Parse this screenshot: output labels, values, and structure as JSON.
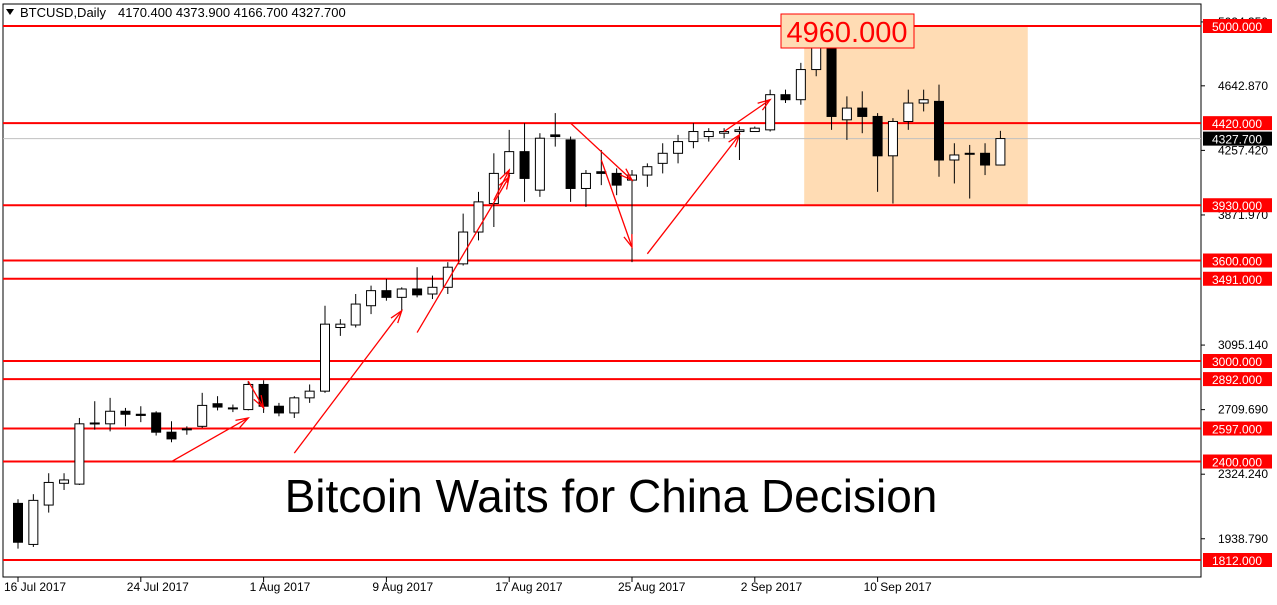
{
  "header": {
    "symbol": "BTCUSD,Daily",
    "ohlc": "4170.400 4373.900 4166.700 4327.700",
    "menu_icon": "triangle-down-icon"
  },
  "headline": "Bitcoin Waits for China Decision",
  "colors": {
    "level_line": "#ff0000",
    "zone_fill": "#ffdcb4",
    "candle_up": "#ffffff",
    "candle_down": "#000000",
    "annotation": "#ff0000",
    "current_price_bg": "#000000"
  },
  "chart_data": {
    "type": "candlestick",
    "title": "BTCUSD,Daily",
    "ylim": [
      1812,
      5000
    ],
    "y_ticks": [
      "1938.790",
      "2324.240",
      "2709.690",
      "3095.140",
      "3871.970",
      "4257.420",
      "4642.870",
      "5024.350"
    ],
    "x_ticks": [
      {
        "date": "2017-07-16",
        "label": "16 Jul 2017"
      },
      {
        "date": "2017-07-24",
        "label": "24 Jul 2017"
      },
      {
        "date": "2017-08-01",
        "label": "1 Aug 2017"
      },
      {
        "date": "2017-08-09",
        "label": "9 Aug 2017"
      },
      {
        "date": "2017-08-17",
        "label": "17 Aug 2017"
      },
      {
        "date": "2017-08-25",
        "label": "25 Aug 2017"
      },
      {
        "date": "2017-09-02",
        "label": "2 Sep 2017"
      },
      {
        "date": "2017-09-10",
        "label": "10 Sep 2017"
      }
    ],
    "candles": [
      {
        "date": "2017-07-16",
        "o": 2150,
        "h": 2175,
        "l": 1880,
        "c": 1918
      },
      {
        "date": "2017-07-17",
        "o": 1905,
        "h": 2205,
        "l": 1890,
        "c": 2168
      },
      {
        "date": "2017-07-18",
        "o": 2140,
        "h": 2330,
        "l": 2095,
        "c": 2275
      },
      {
        "date": "2017-07-19",
        "o": 2270,
        "h": 2330,
        "l": 2230,
        "c": 2290
      },
      {
        "date": "2017-07-20",
        "o": 2265,
        "h": 2660,
        "l": 2260,
        "c": 2625
      },
      {
        "date": "2017-07-21",
        "o": 2625,
        "h": 2760,
        "l": 2590,
        "c": 2630
      },
      {
        "date": "2017-07-22",
        "o": 2625,
        "h": 2780,
        "l": 2580,
        "c": 2700
      },
      {
        "date": "2017-07-23",
        "o": 2700,
        "h": 2720,
        "l": 2610,
        "c": 2682
      },
      {
        "date": "2017-07-24",
        "o": 2682,
        "h": 2730,
        "l": 2635,
        "c": 2675
      },
      {
        "date": "2017-07-25",
        "o": 2690,
        "h": 2700,
        "l": 2555,
        "c": 2575
      },
      {
        "date": "2017-07-26",
        "o": 2575,
        "h": 2640,
        "l": 2515,
        "c": 2535
      },
      {
        "date": "2017-07-27",
        "o": 2595,
        "h": 2610,
        "l": 2560,
        "c": 2590
      },
      {
        "date": "2017-07-28",
        "o": 2610,
        "h": 2810,
        "l": 2600,
        "c": 2735
      },
      {
        "date": "2017-07-29",
        "o": 2745,
        "h": 2790,
        "l": 2705,
        "c": 2725
      },
      {
        "date": "2017-07-30",
        "o": 2720,
        "h": 2740,
        "l": 2695,
        "c": 2715
      },
      {
        "date": "2017-07-31",
        "o": 2710,
        "h": 2880,
        "l": 2705,
        "c": 2860
      },
      {
        "date": "2017-08-01",
        "o": 2860,
        "h": 2885,
        "l": 2690,
        "c": 2730
      },
      {
        "date": "2017-08-02",
        "o": 2730,
        "h": 2750,
        "l": 2670,
        "c": 2690
      },
      {
        "date": "2017-08-03",
        "o": 2690,
        "h": 2790,
        "l": 2660,
        "c": 2780
      },
      {
        "date": "2017-08-04",
        "o": 2780,
        "h": 2860,
        "l": 2750,
        "c": 2820
      },
      {
        "date": "2017-08-05",
        "o": 2820,
        "h": 3330,
        "l": 2810,
        "c": 3220
      },
      {
        "date": "2017-08-06",
        "o": 3200,
        "h": 3250,
        "l": 3150,
        "c": 3220
      },
      {
        "date": "2017-08-07",
        "o": 3215,
        "h": 3400,
        "l": 3200,
        "c": 3340
      },
      {
        "date": "2017-08-08",
        "o": 3330,
        "h": 3450,
        "l": 3280,
        "c": 3420
      },
      {
        "date": "2017-08-09",
        "o": 3420,
        "h": 3490,
        "l": 3360,
        "c": 3380
      },
      {
        "date": "2017-08-10",
        "o": 3380,
        "h": 3440,
        "l": 3300,
        "c": 3430
      },
      {
        "date": "2017-08-11",
        "o": 3430,
        "h": 3560,
        "l": 3380,
        "c": 3395
      },
      {
        "date": "2017-08-12",
        "o": 3400,
        "h": 3510,
        "l": 3370,
        "c": 3440
      },
      {
        "date": "2017-08-13",
        "o": 3440,
        "h": 3590,
        "l": 3400,
        "c": 3560
      },
      {
        "date": "2017-08-14",
        "o": 3580,
        "h": 3880,
        "l": 3570,
        "c": 3770
      },
      {
        "date": "2017-08-15",
        "o": 3770,
        "h": 4010,
        "l": 3720,
        "c": 3950
      },
      {
        "date": "2017-08-16",
        "o": 3940,
        "h": 4240,
        "l": 3800,
        "c": 4120
      },
      {
        "date": "2017-08-17",
        "o": 4120,
        "h": 4380,
        "l": 4100,
        "c": 4250
      },
      {
        "date": "2017-08-18",
        "o": 4250,
        "h": 4420,
        "l": 3950,
        "c": 4090
      },
      {
        "date": "2017-08-19",
        "o": 4020,
        "h": 4360,
        "l": 3980,
        "c": 4330
      },
      {
        "date": "2017-08-20",
        "o": 4350,
        "h": 4480,
        "l": 4280,
        "c": 4340
      },
      {
        "date": "2017-08-21",
        "o": 4320,
        "h": 4340,
        "l": 3950,
        "c": 4030
      },
      {
        "date": "2017-08-22",
        "o": 4030,
        "h": 4140,
        "l": 3920,
        "c": 4120
      },
      {
        "date": "2017-08-23",
        "o": 4130,
        "h": 4260,
        "l": 4050,
        "c": 4120
      },
      {
        "date": "2017-08-24",
        "o": 4120,
        "h": 4150,
        "l": 3990,
        "c": 4050
      },
      {
        "date": "2017-08-25",
        "o": 4080,
        "h": 4140,
        "l": 3590,
        "c": 4110
      },
      {
        "date": "2017-08-26",
        "o": 4110,
        "h": 4180,
        "l": 4040,
        "c": 4160
      },
      {
        "date": "2017-08-27",
        "o": 4180,
        "h": 4300,
        "l": 4120,
        "c": 4240
      },
      {
        "date": "2017-08-28",
        "o": 4240,
        "h": 4350,
        "l": 4180,
        "c": 4310
      },
      {
        "date": "2017-08-29",
        "o": 4310,
        "h": 4420,
        "l": 4270,
        "c": 4370
      },
      {
        "date": "2017-08-30",
        "o": 4340,
        "h": 4390,
        "l": 4310,
        "c": 4370
      },
      {
        "date": "2017-08-31",
        "o": 4360,
        "h": 4390,
        "l": 4330,
        "c": 4370
      },
      {
        "date": "2017-09-01",
        "o": 4370,
        "h": 4400,
        "l": 4200,
        "c": 4380
      },
      {
        "date": "2017-09-02",
        "o": 4370,
        "h": 4400,
        "l": 4370,
        "c": 4390
      },
      {
        "date": "2017-09-03",
        "o": 4380,
        "h": 4620,
        "l": 4370,
        "c": 4590
      },
      {
        "date": "2017-09-04",
        "o": 4590,
        "h": 4620,
        "l": 4540,
        "c": 4560
      },
      {
        "date": "2017-09-05",
        "o": 4560,
        "h": 4780,
        "l": 4530,
        "c": 4740
      },
      {
        "date": "2017-09-06",
        "o": 4740,
        "h": 4940,
        "l": 4700,
        "c": 4880
      },
      {
        "date": "2017-09-07",
        "o": 4880,
        "h": 4960,
        "l": 4380,
        "c": 4460
      },
      {
        "date": "2017-09-08",
        "o": 4440,
        "h": 4580,
        "l": 4320,
        "c": 4510
      },
      {
        "date": "2017-09-09",
        "o": 4510,
        "h": 4610,
        "l": 4360,
        "c": 4460
      },
      {
        "date": "2017-09-10",
        "o": 4460,
        "h": 4480,
        "l": 4010,
        "c": 4225
      },
      {
        "date": "2017-09-11",
        "o": 4225,
        "h": 4450,
        "l": 3940,
        "c": 4430
      },
      {
        "date": "2017-09-12",
        "o": 4430,
        "h": 4620,
        "l": 4380,
        "c": 4540
      },
      {
        "date": "2017-09-13",
        "o": 4540,
        "h": 4620,
        "l": 4490,
        "c": 4560
      },
      {
        "date": "2017-09-14",
        "o": 4550,
        "h": 4650,
        "l": 4100,
        "c": 4200
      },
      {
        "date": "2017-09-15",
        "o": 4200,
        "h": 4300,
        "l": 4060,
        "c": 4230
      },
      {
        "date": "2017-09-16",
        "o": 4240,
        "h": 4290,
        "l": 3970,
        "c": 4240
      },
      {
        "date": "2017-09-17",
        "o": 4240,
        "h": 4300,
        "l": 4110,
        "c": 4170
      },
      {
        "date": "2017-09-18",
        "o": 4170,
        "h": 4374,
        "l": 4167,
        "c": 4328
      }
    ],
    "levels": [
      "5000.000",
      "4420.000",
      "3930.000",
      "3600.000",
      "3491.000",
      "3000.000",
      "2892.000",
      "2597.000",
      "2400.000",
      "1812.000"
    ],
    "current_price": "4327.700",
    "zone": {
      "x_start": "2017-09-06",
      "x_end": "2017-09-19",
      "y_low": 3930,
      "y_high": 5000
    },
    "zone_label": "4960.000",
    "arrows": [
      {
        "from": [
          "2017-07-26",
          2400
        ],
        "to": [
          "2017-07-31",
          2660
        ]
      },
      {
        "from": [
          "2017-07-31",
          2880
        ],
        "to": [
          "2017-08-01",
          2720
        ]
      },
      {
        "from": [
          "2017-08-03",
          2450
        ],
        "to": [
          "2017-08-10",
          3300
        ]
      },
      {
        "from": [
          "2017-08-11",
          3170
        ],
        "to": [
          "2017-08-17",
          4100
        ]
      },
      {
        "from": [
          "2017-08-16",
          3960
        ],
        "to": [
          "2017-08-17",
          4140
        ]
      },
      {
        "from": [
          "2017-08-21",
          4420
        ],
        "to": [
          "2017-08-25",
          4080
        ]
      },
      {
        "from": [
          "2017-08-23",
          4200
        ],
        "to": [
          "2017-08-25",
          3680
        ]
      },
      {
        "from": [
          "2017-08-26",
          3640
        ],
        "to": [
          "2017-09-01",
          4350
        ]
      },
      {
        "from": [
          "2017-08-31",
          4370
        ],
        "to": [
          "2017-09-03",
          4560
        ]
      }
    ]
  }
}
